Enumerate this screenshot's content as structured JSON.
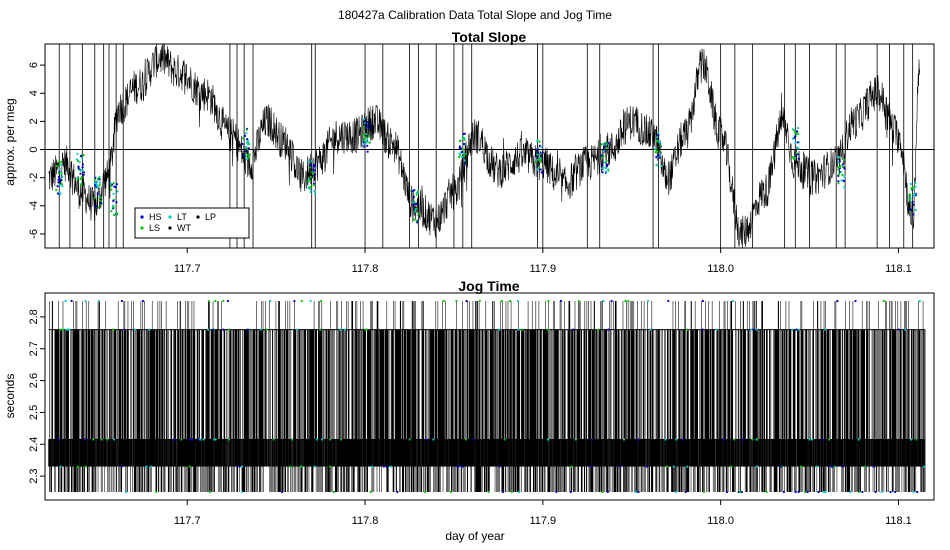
{
  "figure": {
    "title": "180427a   Calibration Data Total Slope and Jog Time",
    "xlabel": "day of year"
  },
  "colors": {
    "trace": "#000000",
    "HS": "#0000cc",
    "LS": "#00cc00",
    "LT": "#00cccc",
    "WT": "#000000",
    "LP": "#000000"
  },
  "chart_data": [
    {
      "type": "line",
      "title": "Total Slope",
      "xlabel": "",
      "ylabel": "approx. per meg",
      "xlim": [
        117.62,
        118.12
      ],
      "ylim": [
        -7,
        7.5
      ],
      "x_ticks": [
        "117.7",
        "117.8",
        "117.9",
        "118.0",
        "118.1"
      ],
      "y_ticks": [
        "-6",
        "-4",
        "-2",
        "0",
        "2",
        "4",
        "6"
      ],
      "reference_line_y": 0,
      "legend": {
        "placement": "lower-left",
        "entries": [
          "HS",
          "LS",
          "LT",
          "WT",
          "LP"
        ]
      },
      "series": [
        {
          "x": [
            117.622,
            117.632,
            117.64,
            117.648,
            117.655,
            117.662,
            117.672,
            117.685,
            117.695,
            117.71,
            117.725,
            117.735,
            117.745,
            117.755,
            117.765,
            117.772,
            117.785,
            117.795,
            117.805,
            117.815,
            117.828,
            117.84,
            117.85,
            117.862,
            117.875,
            117.888,
            117.9,
            117.912,
            117.925,
            117.938,
            117.95,
            117.962,
            117.97,
            117.98,
            117.99,
            118.0,
            118.012,
            118.025,
            118.035,
            118.042,
            118.052,
            118.065,
            118.075,
            118.088,
            118.1,
            118.108,
            118.112
          ],
          "y": [
            -2,
            -1,
            -3,
            -4,
            -2,
            3,
            4.5,
            6.5,
            5.5,
            4,
            1,
            -1,
            2,
            0.5,
            -2,
            -1,
            1,
            1,
            2,
            0.5,
            -4,
            -5,
            -3,
            1,
            -1.5,
            -0.5,
            -1,
            -2.5,
            -1,
            0,
            2,
            1,
            -2,
            1,
            6,
            1,
            -6,
            -3,
            2,
            -1,
            -2,
            -1,
            2,
            4,
            1,
            -5,
            6.5
          ]
        }
      ],
      "calibration_markers": [
        {
          "x": [
            117.628,
            117.64,
            117.65,
            117.659,
            117.733,
            117.77,
            117.801,
            117.828,
            117.855,
            117.898,
            117.935,
            117.965,
            118.042,
            118.068,
            118.108
          ],
          "y": [
            -2,
            -1.5,
            -3,
            -3.5,
            0.5,
            -2,
            1,
            -4,
            0,
            -0.5,
            -0.5,
            0,
            0.5,
            -1.5,
            -3.5
          ]
        }
      ]
    },
    {
      "type": "line",
      "title": "Jog Time",
      "xlabel": "day of year",
      "ylabel": "seconds",
      "xlim": [
        117.62,
        118.12
      ],
      "ylim": [
        2.225,
        2.875
      ],
      "x_ticks": [
        "117.7",
        "117.8",
        "117.9",
        "118.0",
        "118.1"
      ],
      "y_ticks": [
        "2.3",
        "2.4",
        "2.5",
        "2.6",
        "2.7",
        "2.8"
      ],
      "levels": [
        2.25,
        2.33,
        2.415,
        2.76,
        2.85
      ],
      "x_range": [
        117.622,
        118.115
      ]
    }
  ]
}
